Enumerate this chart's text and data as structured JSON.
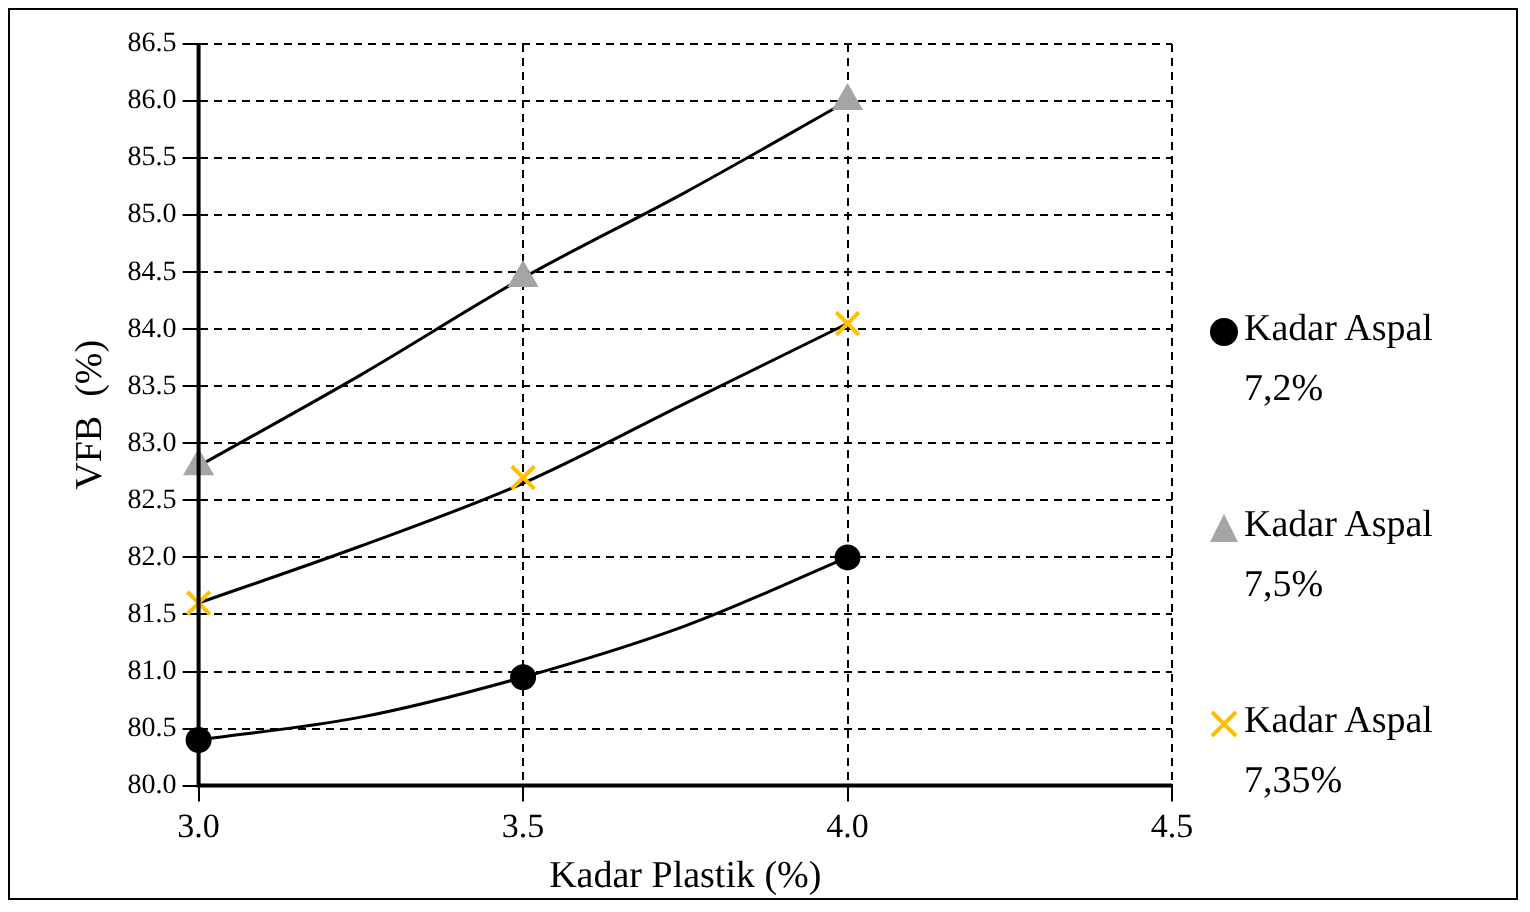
{
  "chart_data": {
    "type": "scatter",
    "xlabel": "Kadar Plastik (%)",
    "ylabel": "VFB  (%)",
    "x": [
      3.0,
      3.5,
      4.0
    ],
    "series": [
      {
        "name": "Kadar Aspal 7,2%",
        "color": "#000000",
        "marker": "circle",
        "values": [
          80.4,
          80.95,
          82.0
        ]
      },
      {
        "name": "Kadar Aspal 7,5%",
        "color": "#a5a5a5",
        "marker": "triangle",
        "values": [
          82.8,
          84.45,
          86.0
        ]
      },
      {
        "name": "Kadar Aspal 7,35%",
        "color": "#ffc000",
        "marker": "cross",
        "values": [
          81.6,
          82.7,
          84.05
        ]
      },
      {
        "type": "line",
        "color": "#000000",
        "marker": "none",
        "x": [
          3.0,
          3.25,
          3.5,
          3.75,
          4.0
        ],
        "values": [
          80.4,
          80.6,
          80.95,
          81.4,
          82.0
        ]
      },
      {
        "type": "line",
        "color": "#000000",
        "marker": "none",
        "x": [
          3.0,
          3.25,
          3.5,
          3.75,
          4.0
        ],
        "values": [
          82.8,
          83.6,
          84.45,
          85.2,
          86.0
        ]
      },
      {
        "type": "line",
        "color": "#000000",
        "marker": "none",
        "x": [
          3.0,
          3.25,
          3.5,
          3.75,
          4.0
        ],
        "values": [
          81.6,
          82.1,
          82.65,
          83.35,
          84.05
        ]
      }
    ],
    "xlim": [
      3.0,
      4.5
    ],
    "xticks": [
      {
        "value": 3.0,
        "label": "3.0"
      },
      {
        "value": 3.5,
        "label": "3.5"
      },
      {
        "value": 4.0,
        "label": "4.0"
      },
      {
        "value": 4.5,
        "label": "4.5"
      }
    ],
    "ylim": [
      80.0,
      86.5
    ],
    "yticks": [
      {
        "value": 80,
        "label": "80.0"
      },
      {
        "value": 80.5,
        "label": "80.5"
      },
      {
        "value": 81,
        "label": "81.0"
      },
      {
        "value": 81.5,
        "label": "81.5"
      },
      {
        "value": 82,
        "label": "82.0"
      },
      {
        "value": 82.5,
        "label": "82.5"
      },
      {
        "value": 83,
        "label": "83.0"
      },
      {
        "value": 83.5,
        "label": "83.5"
      },
      {
        "value": 84,
        "label": "84.0"
      },
      {
        "value": 84.5,
        "label": "84.5"
      },
      {
        "value": 85,
        "label": "85.0"
      },
      {
        "value": 85.5,
        "label": "85.5"
      },
      {
        "value": 86,
        "label": "86.0"
      },
      {
        "value": 86.5,
        "label": "86.5"
      }
    ],
    "grid": true,
    "legend": "right"
  }
}
